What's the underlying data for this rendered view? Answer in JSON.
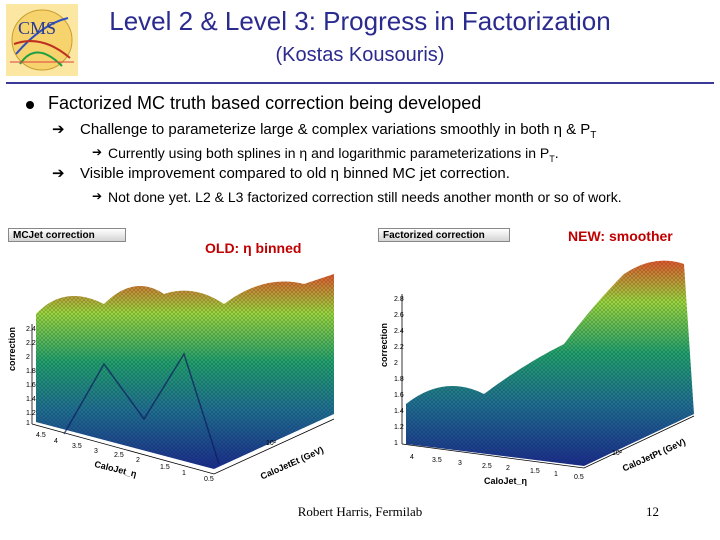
{
  "slide": {
    "title": "Level 2 & Level 3: Progress in Factorization",
    "subtitle": "(Kostas Kousouris)",
    "logo_text": "CMS"
  },
  "bullets": {
    "main": "Factorized MC truth based correction being developed",
    "sub1": "Challenge to parameterize large & complex variations smoothly in both η & P",
    "sub1_subscript": "T",
    "sub1_detail_a": "Currently using both splines in η and logarithmic parameterizations in P",
    "sub1_detail_sub": "T",
    "sub1_detail_b": ".",
    "sub2": "Visible improvement compared to old η binned MC jet correction.",
    "sub2_detail": "Not done yet. L2 & L3 factorized correction still needs another month or so of work."
  },
  "plots": {
    "left": {
      "panel_label": "MCJet correction",
      "tag": "OLD: η binned",
      "z_title": "correction",
      "z_ticks": [
        "1",
        "1.2",
        "1.4",
        "1.6",
        "1.8",
        "2",
        "2.2",
        "2.4"
      ],
      "eta_title": "CaloJet_η",
      "eta_ticks": [
        "4.5",
        "4",
        "3.5",
        "3",
        "2.5",
        "2",
        "1.5",
        "1",
        "0.5"
      ],
      "pt_title": "CaloJetEt (GeV)",
      "pt_tick": "10²"
    },
    "right": {
      "panel_label": "Factorized correction",
      "tag": "NEW: smoother",
      "z_title": "correction",
      "z_ticks": [
        "1",
        "1.2",
        "1.4",
        "1.6",
        "1.8",
        "2",
        "2.2",
        "2.4",
        "2.6",
        "2.8"
      ],
      "eta_title": "CaloJet_η",
      "eta_ticks": [
        "4",
        "3.5",
        "3",
        "2.5",
        "2",
        "1.5",
        "1",
        "0.5"
      ],
      "pt_title": "CaloJetPt (GeV)",
      "pt_tick": "10²"
    }
  },
  "footer": {
    "author": "Robert Harris, Fermilab",
    "page": "12"
  },
  "colors": {
    "title": "#2b2b8f",
    "tag": "#c00000"
  }
}
